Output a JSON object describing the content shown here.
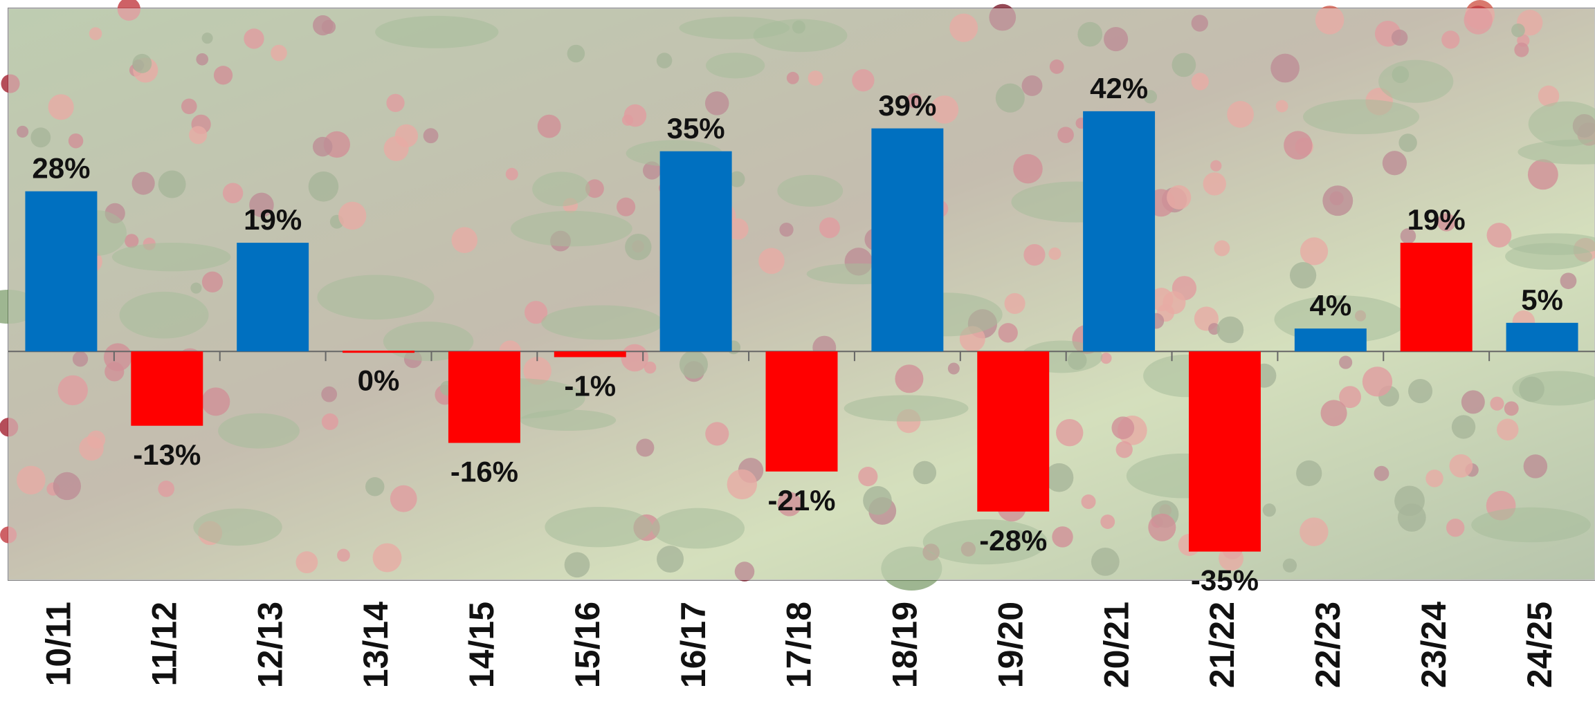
{
  "chart_data": {
    "type": "bar",
    "categories": [
      "10/11",
      "11/12",
      "12/13",
      "13/14",
      "14/15",
      "15/16",
      "16/17",
      "17/18",
      "18/19",
      "19/20",
      "20/21",
      "21/22",
      "22/23",
      "23/24",
      "24/25"
    ],
    "values": [
      28,
      -13,
      19,
      0,
      -16,
      -1,
      35,
      -21,
      39,
      -28,
      42,
      -35,
      4,
      19,
      5
    ],
    "value_labels": [
      "28%",
      "-13%",
      "19%",
      "0%",
      "-16%",
      "-1%",
      "35%",
      "-21%",
      "39%",
      "-28%",
      "42%",
      "-35%",
      "4%",
      "19%",
      "5%"
    ],
    "colors": [
      "#0070c0",
      "#ff0000",
      "#0070c0",
      "#ff0000",
      "#ff0000",
      "#ff0000",
      "#0070c0",
      "#ff0000",
      "#0070c0",
      "#ff0000",
      "#0070c0",
      "#ff0000",
      "#0070c0",
      "#ff0000",
      "#0070c0"
    ],
    "ylim": [
      -40,
      60
    ]
  }
}
